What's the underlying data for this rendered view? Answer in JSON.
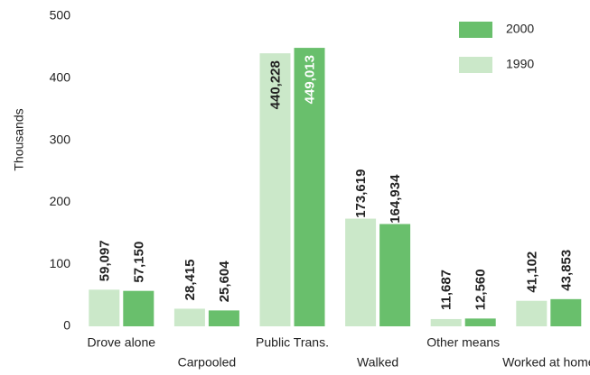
{
  "chart_data": {
    "type": "bar",
    "y_label": "Thousands",
    "categories": [
      "Drove alone",
      "Carpooled",
      "Public Trans.",
      "Walked",
      "Other means",
      "Worked at home"
    ],
    "series": [
      {
        "name": "1990",
        "color": "#cbe8c9",
        "values": [
          59.097,
          28.415,
          440.228,
          173.619,
          11.687,
          41.102
        ],
        "value_labels": [
          "59,097",
          "28,415",
          "440,228",
          "173,619",
          "11,687",
          "41,102"
        ]
      },
      {
        "name": "2000",
        "color": "#69bf6c",
        "values": [
          57.15,
          25.604,
          449.013,
          164.934,
          12.56,
          43.853
        ],
        "value_labels": [
          "57,150",
          "25,604",
          "449,013",
          "164,934",
          "12,560",
          "43,853"
        ]
      }
    ],
    "ylim": [
      0,
      500
    ],
    "yticks": [
      0,
      100,
      200,
      300,
      400,
      500
    ],
    "grid": false,
    "legend": "upper right"
  }
}
